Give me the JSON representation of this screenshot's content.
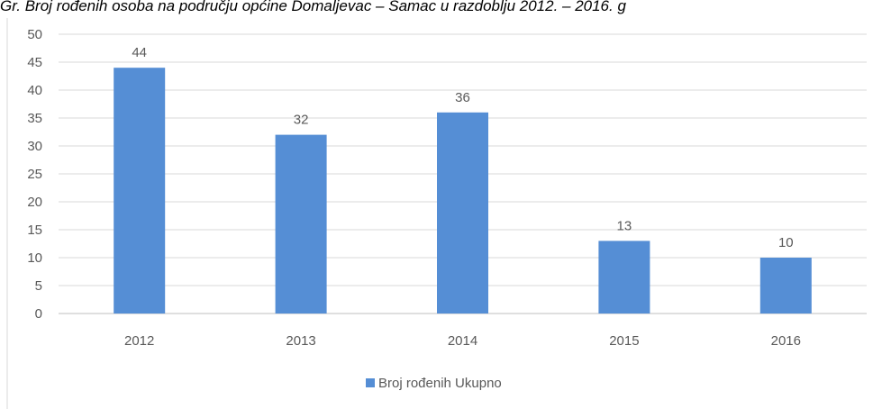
{
  "chart_data": {
    "type": "bar",
    "title": "Gr. Broj rođenih osoba na području općine Domaljevac – Šamac u razdoblju 2012. – 2016. g",
    "categories": [
      "2012",
      "2013",
      "2014",
      "2015",
      "2016"
    ],
    "series": [
      {
        "name": "Broj rođenih Ukupno",
        "color": "#558ed5",
        "values": [
          44,
          32,
          36,
          13,
          10
        ]
      }
    ],
    "ylim": [
      0,
      50
    ],
    "yticks": [
      0,
      5,
      10,
      15,
      20,
      25,
      30,
      35,
      40,
      45,
      50
    ],
    "grid": true,
    "legend": "bottom"
  }
}
